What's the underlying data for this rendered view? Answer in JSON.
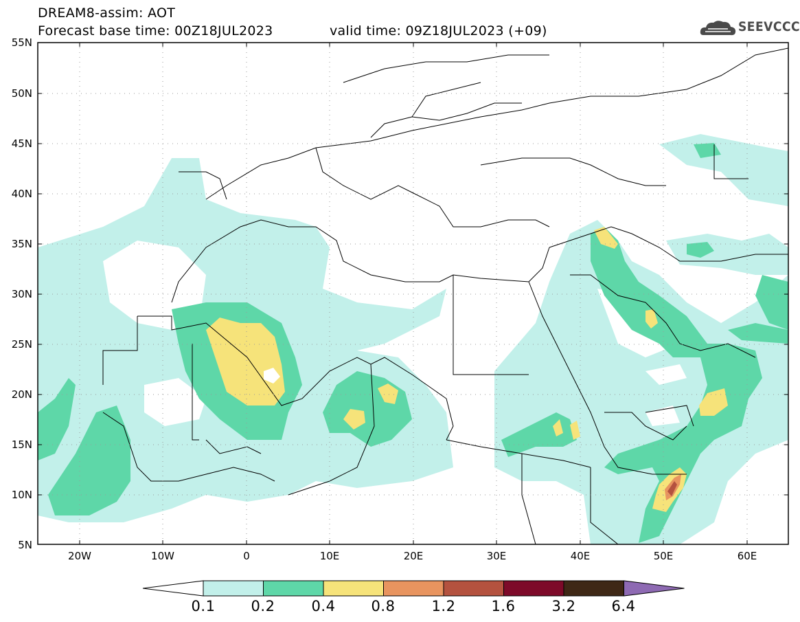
{
  "header": {
    "title_line1": "DREAM8-assim: AOT",
    "title_line2": "Forecast base time: 00Z18JUL2023",
    "valid_time": "valid time: 09Z18JUL2023 (+09)",
    "logo_text": "SEEVCCC",
    "logo_icon": "cloud-icon"
  },
  "map": {
    "lat_labels": [
      "55N",
      "50N",
      "45N",
      "40N",
      "35N",
      "30N",
      "25N",
      "20N",
      "15N",
      "10N",
      "5N"
    ],
    "lon_labels": [
      "20W",
      "10W",
      "0",
      "10E",
      "20E",
      "30E",
      "40E",
      "50E",
      "60E"
    ]
  },
  "legend": {
    "thresholds": [
      "0.1",
      "0.2",
      "0.4",
      "0.8",
      "1.2",
      "1.6",
      "3.2",
      "6.4"
    ],
    "colors": [
      "#ffffff",
      "#c2f0ea",
      "#5ed7a8",
      "#f6e37a",
      "#e8945f",
      "#b4523f",
      "#7d0a29",
      "#3f2816",
      "#8e6ab3"
    ]
  }
}
